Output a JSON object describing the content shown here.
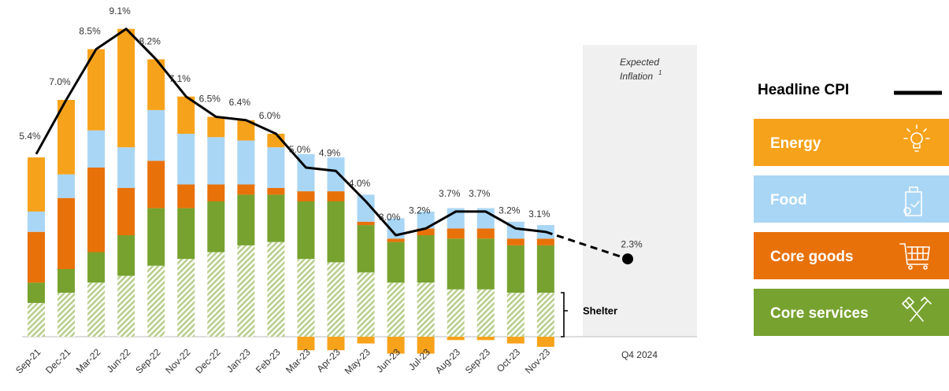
{
  "chart_data": {
    "type": "stacked_bar_line",
    "categories": [
      "Sep-21",
      "Dec-21",
      "Mar-22",
      "Jun-22",
      "Sep-22",
      "Nov-22",
      "Dec-22",
      "Jan-23",
      "Feb-23",
      "Mar-23",
      "Apr-23",
      "May-23",
      "Jun-23",
      "Jul-23",
      "Aug-23",
      "Sep-23",
      "Oct-23",
      "Nov-23"
    ],
    "series": [
      {
        "name": "Shelter",
        "color": "#b9cf8e",
        "values": [
          1.0,
          1.3,
          1.6,
          1.8,
          2.1,
          2.3,
          2.5,
          2.7,
          2.8,
          2.3,
          2.2,
          1.9,
          1.6,
          1.6,
          1.4,
          1.4,
          1.3,
          1.3
        ]
      },
      {
        "name": "Core services",
        "color": "#77a22f",
        "values": [
          0.6,
          0.7,
          0.9,
          1.2,
          1.7,
          1.5,
          1.5,
          1.5,
          1.4,
          1.7,
          1.8,
          1.4,
          1.2,
          1.4,
          1.5,
          1.5,
          1.4,
          1.4
        ]
      },
      {
        "name": "Core goods",
        "color": "#e8710a",
        "values": [
          1.5,
          2.1,
          2.5,
          1.4,
          1.4,
          0.7,
          0.5,
          0.3,
          0.2,
          0.3,
          0.3,
          0.1,
          0.1,
          0.2,
          0.3,
          0.3,
          0.2,
          0.2
        ]
      },
      {
        "name": "Food",
        "color": "#a9d6f5",
        "values": [
          0.6,
          0.7,
          1.1,
          1.2,
          1.5,
          1.5,
          1.4,
          1.3,
          1.2,
          1.1,
          1.0,
          0.8,
          0.6,
          0.5,
          0.6,
          0.6,
          0.5,
          0.4
        ]
      },
      {
        "name": "Energy",
        "color": "#f7a21b",
        "values": [
          1.6,
          2.2,
          2.4,
          3.5,
          1.5,
          1.1,
          0.6,
          0.6,
          0.4,
          -0.4,
          -0.4,
          -0.2,
          -0.5,
          -0.5,
          -0.1,
          -0.1,
          -0.2,
          -0.3
        ]
      }
    ],
    "line": {
      "name": "Headline CPI",
      "color": "#000000",
      "values": [
        5.4,
        7.0,
        8.5,
        9.1,
        8.2,
        7.1,
        6.5,
        6.4,
        6.0,
        5.0,
        4.9,
        4.0,
        3.0,
        3.2,
        3.7,
        3.7,
        3.2,
        3.1
      ],
      "value_labels": [
        "5.4%",
        "7.0%",
        "8.5%",
        "9.1%",
        "8.2%",
        "7.1%",
        "6.5%",
        "6.4%",
        "6.0%",
        "5.0%",
        "4.9%",
        "4.0%",
        "3.0%",
        "3.2%",
        "3.7%",
        "3.7%",
        "3.2%",
        "3.1%"
      ]
    },
    "expected": {
      "title": [
        "Expected",
        "Inflation"
      ],
      "footnote": "1",
      "category": "Q4 2024",
      "value": 2.3,
      "value_label": "2.3%"
    }
  }
}
